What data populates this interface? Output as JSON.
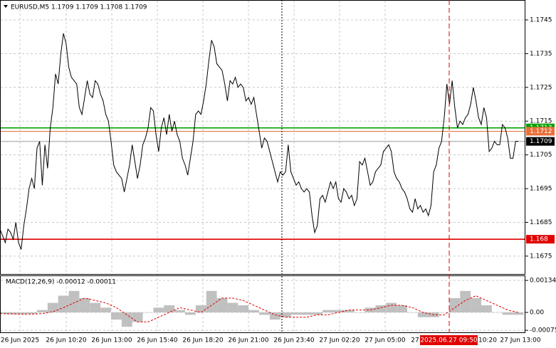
{
  "chart_data": [
    {
      "type": "line",
      "title": "EURUSD,M5  1.1709 1.1709 1.1708 1.1709",
      "color": "#000000",
      "grid": true,
      "ylim": [
        1.16697,
        1.17509
      ],
      "yticks": [
        1.1675,
        1.1685,
        1.1695,
        1.1705,
        1.1715,
        1.1725,
        1.1735,
        1.1745
      ],
      "levels": [
        {
          "value": 1.1713,
          "color": "#00a000"
        },
        {
          "value": 1.1712,
          "color": "#e8703a"
        },
        {
          "value": 1.1709,
          "color": "#000000"
        },
        {
          "value": 1.168,
          "color": "#e00000"
        }
      ],
      "x_labels": [
        "26 Jun 2025",
        "26 Jun 10:20",
        "26 Jun 13:00",
        "26 Jun 15:40",
        "26 Jun 18:20",
        "26 Jun 21:00",
        "26 Jun 23:40",
        "27 Jun 02:20",
        "27 Jun 05:00",
        "27",
        "10:20",
        "27 Jun 13:00"
      ],
      "crosshair_label": "2025.06.27 09:50",
      "values": [
        1.1683,
        1.1681,
        1.1679,
        1.1683,
        1.1682,
        1.168,
        1.1685,
        1.1679,
        1.1677,
        1.1684,
        1.1689,
        1.1695,
        1.1698,
        1.1695,
        1.1707,
        1.1709,
        1.1696,
        1.1708,
        1.1701,
        1.1713,
        1.1719,
        1.1729,
        1.1726,
        1.1735,
        1.1741,
        1.1738,
        1.1731,
        1.1728,
        1.1727,
        1.1726,
        1.1719,
        1.1717,
        1.1722,
        1.1727,
        1.1723,
        1.1722,
        1.1727,
        1.1726,
        1.1723,
        1.1721,
        1.1717,
        1.1715,
        1.1709,
        1.1702,
        1.17,
        1.1699,
        1.1698,
        1.1694,
        1.1698,
        1.1702,
        1.1708,
        1.1703,
        1.1698,
        1.1702,
        1.1708,
        1.171,
        1.1713,
        1.1719,
        1.1718,
        1.1711,
        1.1706,
        1.1713,
        1.1716,
        1.1711,
        1.1717,
        1.1712,
        1.1715,
        1.1711,
        1.1709,
        1.1704,
        1.1702,
        1.1699,
        1.1704,
        1.1709,
        1.1717,
        1.1718,
        1.1717,
        1.1721,
        1.1726,
        1.1733,
        1.1739,
        1.1737,
        1.1732,
        1.1731,
        1.173,
        1.1726,
        1.1721,
        1.1727,
        1.1726,
        1.1728,
        1.1725,
        1.1726,
        1.1725,
        1.1721,
        1.1722,
        1.172,
        1.1722,
        1.1717,
        1.1712,
        1.1707,
        1.171,
        1.1709,
        1.1706,
        1.1703,
        1.17,
        1.1697,
        1.17,
        1.1699,
        1.17,
        1.1708,
        1.17,
        1.1698,
        1.1696,
        1.1697,
        1.1695,
        1.1694,
        1.1695,
        1.1694,
        1.1687,
        1.1682,
        1.1684,
        1.1692,
        1.1693,
        1.1691,
        1.1694,
        1.1697,
        1.1695,
        1.1697,
        1.1692,
        1.1691,
        1.1695,
        1.1694,
        1.1692,
        1.1693,
        1.169,
        1.1692,
        1.1703,
        1.1702,
        1.1704,
        1.17,
        1.1696,
        1.1697,
        1.17,
        1.1701,
        1.1702,
        1.1706,
        1.1707,
        1.1708,
        1.1706,
        1.17,
        1.1698,
        1.1697,
        1.1695,
        1.1694,
        1.1692,
        1.1689,
        1.1688,
        1.1692,
        1.1689,
        1.169,
        1.1688,
        1.1689,
        1.1687,
        1.169,
        1.17,
        1.1702,
        1.1707,
        1.1709,
        1.1716,
        1.1726,
        1.172,
        1.1727,
        1.1719,
        1.1713,
        1.1715,
        1.1714,
        1.1716,
        1.1717,
        1.172,
        1.1725,
        1.1721,
        1.1716,
        1.1714,
        1.1719,
        1.1716,
        1.1706,
        1.1707,
        1.1709,
        1.1708,
        1.1708,
        1.1714,
        1.1713,
        1.171,
        1.1704,
        1.1704,
        1.1709,
        1.1709
      ]
    },
    {
      "type": "macd",
      "title": "MACD(12,26,9) -0.00012 -0.00011",
      "grid": true,
      "ylim": [
        -0.000864,
        0.00155
      ],
      "yticks": [
        -0.00075,
        {
          "value": 0,
          "label": "0.00"
        },
        0.00134
      ],
      "series": [
        {
          "type": "bar",
          "color": "#c0c0c0",
          "values": [
            -5e-05,
            -8e-05,
            -8e-05,
            -6e-05,
            0.0001,
            0.0004,
            0.0007,
            0.0009,
            0.0006,
            0.0004,
            0.0002,
            -0.0003,
            -0.0006,
            -0.0004,
            0,
            0.0002,
            0.0003,
            0.0001,
            -0.0001,
            0.0003,
            0.0009,
            0.0006,
            0.0004,
            0.0003,
            0.0001,
            -0.0001,
            -0.0003,
            -0.0002,
            -0.0001,
            -0.0001,
            -0.0001,
            0.0001,
            0.0001,
            0.0001,
            0,
            0.0002,
            0.0003,
            0.0004,
            0.0003,
            0,
            -0.0002,
            -0.0002,
            0,
            0.0006,
            0.0009,
            0.0006,
            0.0003,
            0,
            -0.0001,
            -0.0001
          ]
        },
        {
          "type": "line",
          "color": "#e00000",
          "values": [
            -5e-05,
            -6e-05,
            -7e-05,
            -7e-05,
            -5e-05,
            3e-05,
            0.0002,
            0.0004,
            0.0006,
            0.0005,
            0.0004,
            0.0002,
            -0.0001,
            -0.0004,
            -0.0004,
            -0.0002,
            0,
            0.0002,
            0.0001,
            0,
            0.0003,
            0.0006,
            0.0006,
            0.0005,
            0.0003,
            0.0001,
            -0.0001,
            -0.0002,
            -0.0002,
            -0.0002,
            -0.0001,
            -0.0001,
            0,
            0.0001,
            0.0001,
            0.0001,
            0.0002,
            0.0003,
            0.0003,
            0.0002,
            0,
            -0.0001,
            -0.0001,
            0.0002,
            0.0005,
            0.0007,
            0.0005,
            0.0003,
            0.0001,
            0
          ]
        }
      ]
    }
  ]
}
